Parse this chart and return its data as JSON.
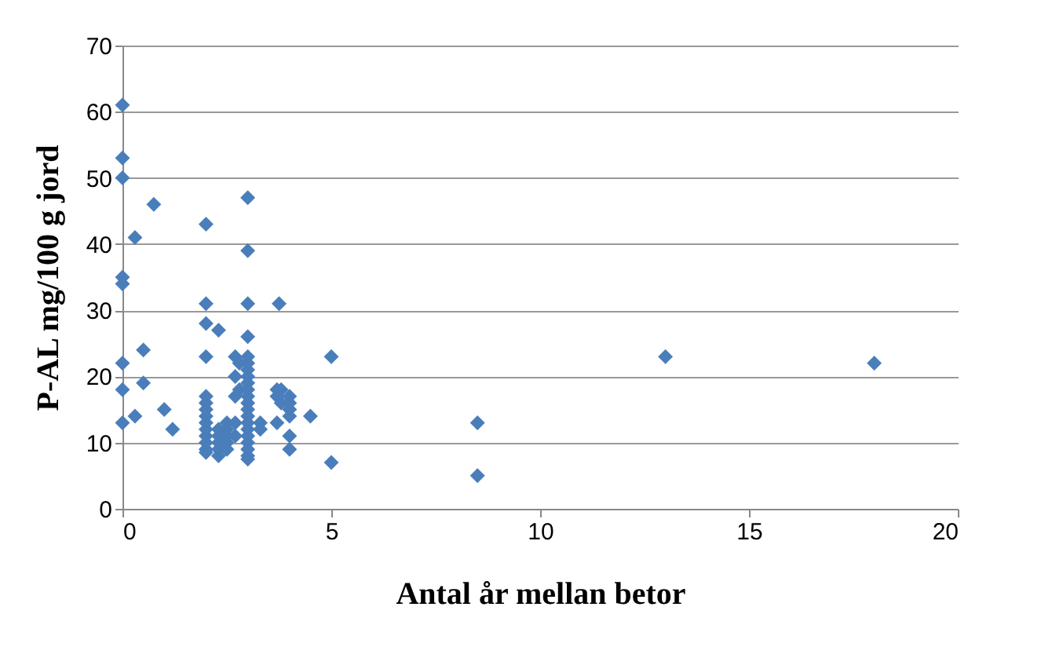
{
  "chart_data": {
    "type": "scatter",
    "xlabel": "Antal år mellan betor",
    "ylabel": "P-AL mg/100 g jord",
    "x": [
      0,
      0,
      0,
      0.75,
      0.3,
      2,
      3,
      3,
      0,
      0,
      0,
      0,
      0,
      0.5,
      0.5,
      0.3,
      1,
      1.2,
      2,
      3,
      3.75,
      2,
      2.3,
      3,
      2,
      3,
      5,
      13,
      18,
      5,
      8.5,
      8.5,
      4.5,
      2,
      2,
      2,
      2,
      2,
      2,
      2,
      2,
      2,
      2,
      2.3,
      2.3,
      2.3,
      2.3,
      2.3,
      2.5,
      2.5,
      2.5,
      2.5,
      2.5,
      2.7,
      2.7,
      2.7,
      2.7,
      2.7,
      2.8,
      2.8,
      3,
      3,
      3,
      3,
      3,
      3,
      3,
      3,
      3,
      3,
      3,
      3,
      3,
      3,
      3,
      3,
      3.3,
      3.3,
      3.7,
      3.7,
      3.7,
      3.8,
      3.8,
      4,
      4,
      4,
      4,
      4,
      4
    ],
    "values": [
      61,
      53,
      50,
      46,
      41,
      43,
      47,
      39,
      35,
      34,
      22,
      18,
      13,
      24,
      19,
      14,
      15,
      12,
      31,
      31,
      31,
      28,
      27,
      26,
      23,
      23,
      23,
      23,
      22,
      7,
      13,
      5,
      14,
      17,
      16,
      15,
      14,
      13,
      12,
      11,
      10,
      9,
      8.5,
      12,
      11,
      10,
      9,
      8,
      13,
      12,
      11,
      10,
      9,
      23,
      20,
      17,
      13,
      11,
      22,
      18,
      22,
      21,
      20,
      19,
      18,
      17,
      16,
      15,
      14,
      13,
      12,
      11,
      10,
      9,
      8,
      7.5,
      13,
      12,
      13,
      18,
      17,
      16,
      18,
      17,
      16,
      15,
      14,
      11,
      9
    ],
    "color": "#4a7ebb",
    "marker": "diamond",
    "xlim": [
      0,
      20
    ],
    "xticks": [
      0,
      5,
      10,
      15,
      20
    ],
    "ylim": [
      0,
      70
    ],
    "yticks": [
      0,
      10,
      20,
      30,
      40,
      50,
      60,
      70
    ],
    "grid": "y"
  }
}
